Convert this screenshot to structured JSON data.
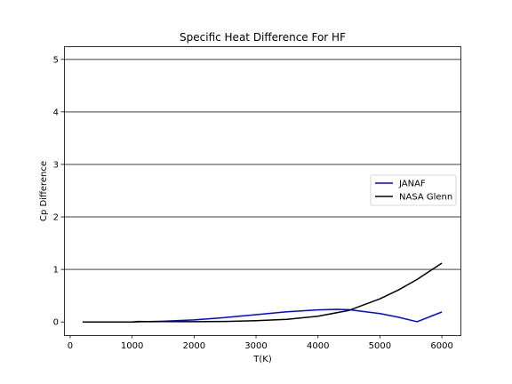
{
  "chart_data": {
    "type": "line",
    "title": "Specific Heat Difference For HF",
    "xlabel": "T(K)",
    "ylabel": "Cp Difference",
    "xlim": [
      -100,
      6300
    ],
    "ylim": [
      -0.25,
      5.25
    ],
    "xticks": [
      0,
      1000,
      2000,
      3000,
      4000,
      5000,
      6000
    ],
    "yticks": [
      0,
      1,
      2,
      3,
      4,
      5
    ],
    "grid": "horizontal",
    "legend_position": "center-right",
    "series": [
      {
        "name": "JANAF",
        "color": "#0000ff",
        "x": [
          200,
          500,
          800,
          1000,
          1200,
          1500,
          2000,
          2500,
          3000,
          3500,
          4000,
          4300,
          4500,
          5000,
          5300,
          5600,
          6000
        ],
        "y": [
          0.0,
          0.0,
          0.0,
          0.0,
          0.005,
          0.015,
          0.04,
          0.085,
          0.14,
          0.195,
          0.23,
          0.24,
          0.235,
          0.16,
          0.09,
          0.005,
          0.19
        ]
      },
      {
        "name": "NASA Glenn",
        "color": "#000000",
        "x": [
          200,
          500,
          1000,
          1100,
          1300,
          1500,
          2000,
          2500,
          3000,
          3500,
          4000,
          4500,
          5000,
          5300,
          5600,
          6000
        ],
        "y": [
          0.0,
          0.0,
          0.0,
          0.01,
          0.005,
          0.008,
          0.006,
          0.01,
          0.025,
          0.05,
          0.11,
          0.22,
          0.44,
          0.61,
          0.81,
          1.12
        ]
      }
    ]
  }
}
